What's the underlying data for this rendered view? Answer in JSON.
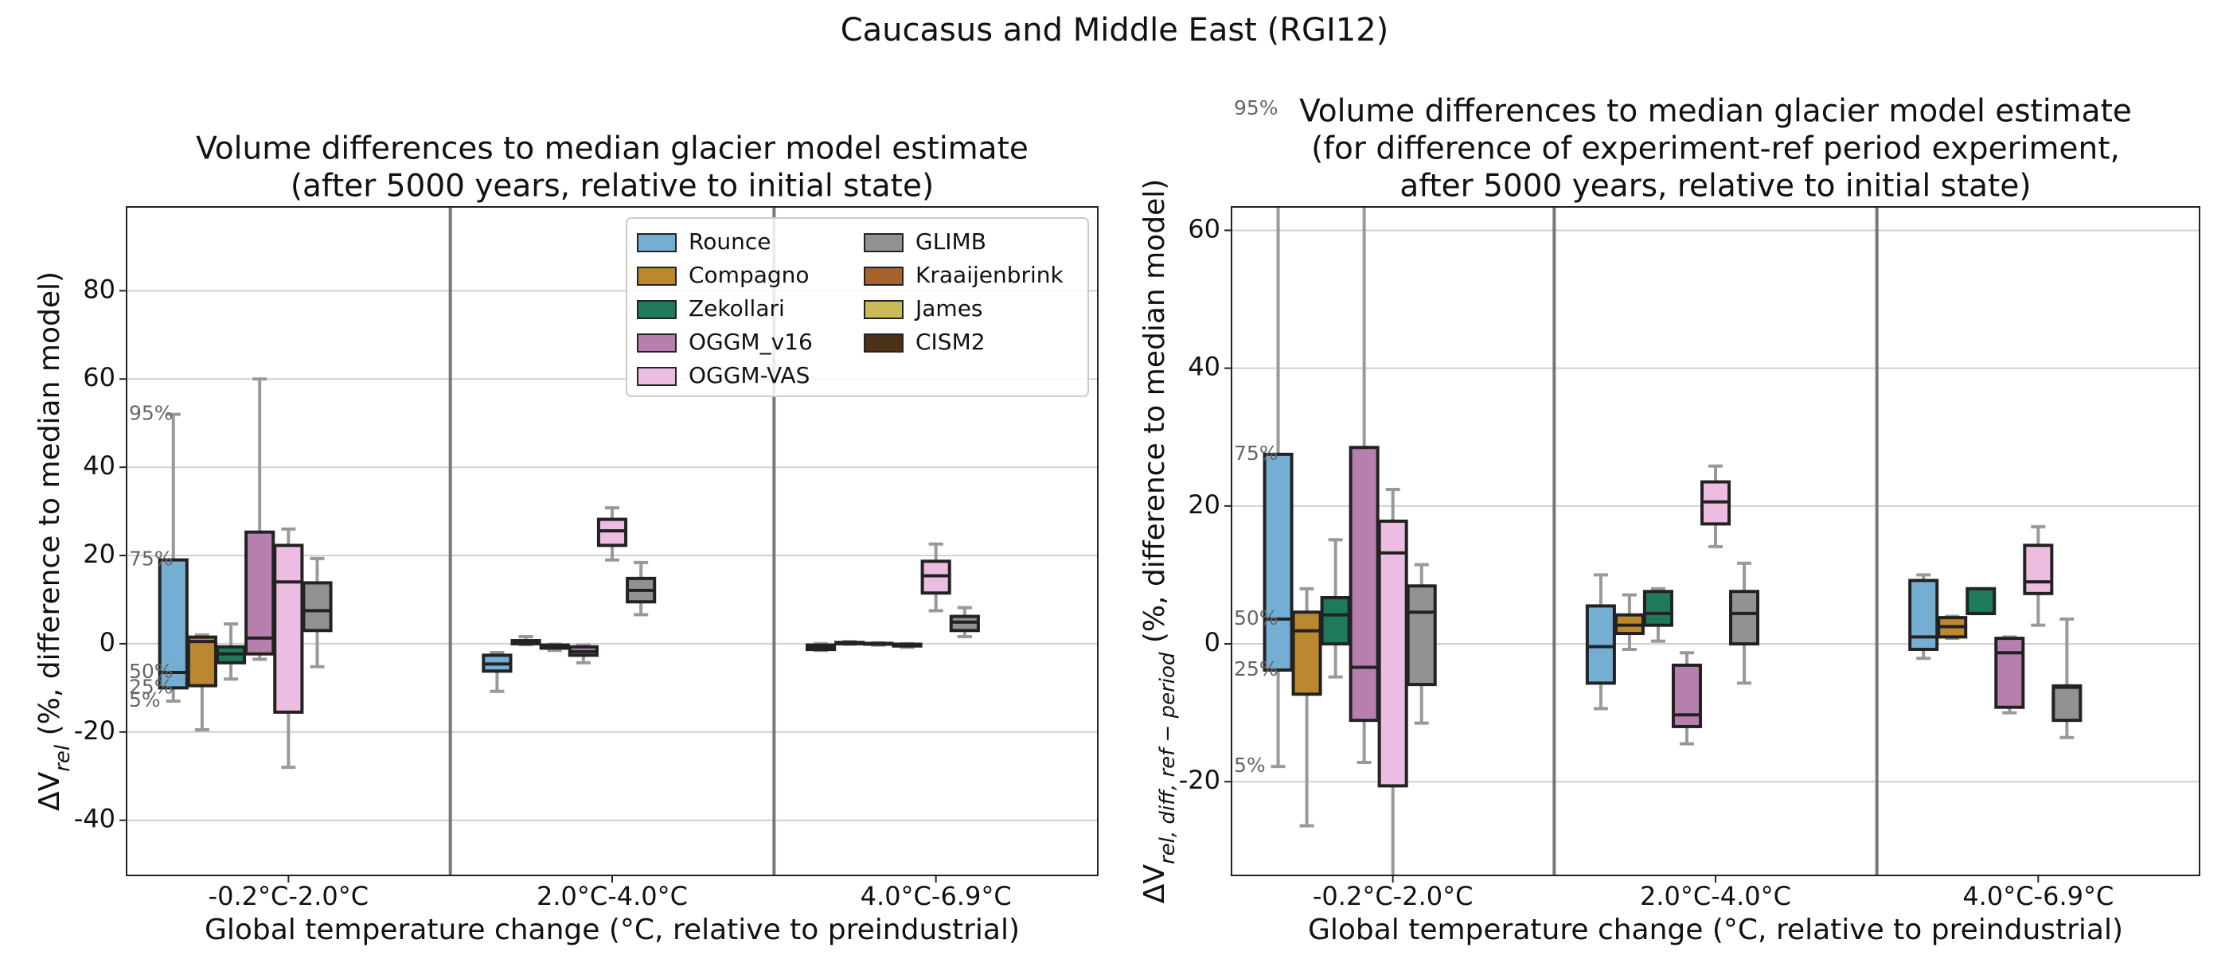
{
  "title": "Caucasus and Middle East (RGI12)",
  "chart_data": [
    {
      "type": "box",
      "title": [
        "Volume differences to median glacier model estimate",
        "(after 5000 years, relative to initial state)"
      ],
      "x_label": "Global temperature change (°C, relative to preindustrial)",
      "y_label": [
        "ΔV",
        "rel",
        " (%, difference to median model)"
      ],
      "categories": [
        "-0.2°C-2.0°C",
        "2.0°C-4.0°C",
        "4.0°C-6.9°C"
      ],
      "ylim": [
        -52.5,
        99
      ],
      "yticks": [
        -40,
        -20,
        0,
        20,
        40,
        60,
        80
      ],
      "grid": true,
      "legend": {
        "loc": "upper right",
        "ncol": 2
      },
      "quantile_labels": [
        "95%",
        "75%",
        "50%",
        "25%",
        "5%"
      ],
      "series": [
        {
          "name": "Rounce",
          "color": "#75aed3",
          "values": [
            [
              -13,
              -10,
              -6.5,
              19,
              52
            ],
            [
              -10.8,
              -6.2,
              -4.6,
              -2.6,
              -2
            ],
            [
              -1.5,
              -1.3,
              -0.8,
              -0.3,
              0
            ]
          ]
        },
        {
          "name": "Compagno",
          "color": "#bb882f",
          "values": [
            [
              -19.5,
              -9.5,
              0.5,
              1.5,
              2
            ],
            [
              -0.2,
              0,
              0.3,
              0.7,
              1.6
            ],
            [
              -0.1,
              0,
              0.2,
              0.3,
              0.5
            ]
          ]
        },
        {
          "name": "Zekollari",
          "color": "#1f7a5c",
          "values": [
            [
              -8,
              -4.3,
              -2.3,
              -0.7,
              4.5
            ],
            [
              -1.5,
              -1,
              -0.6,
              -0.3,
              -0.1
            ],
            [
              -0.3,
              -0.1,
              0,
              0.1,
              0.2
            ]
          ]
        },
        {
          "name": "OGGM_v16",
          "color": "#b77fae",
          "values": [
            [
              -3.5,
              -2.3,
              1.3,
              25.3,
              60
            ],
            [
              -4.3,
              -2.6,
              -1.8,
              -0.7,
              -0.3
            ],
            [
              -0.8,
              -0.5,
              -0.3,
              -0.1,
              0
            ]
          ]
        },
        {
          "name": "OGGM-VAS",
          "color": "#ecbde0",
          "values": [
            [
              -28,
              -15.5,
              14,
              22.3,
              26
            ],
            [
              19,
              22.3,
              25.6,
              28.2,
              30.8
            ],
            [
              7.5,
              11.5,
              15.4,
              18.7,
              22.6
            ]
          ]
        },
        {
          "name": "GLIMB",
          "color": "#929292",
          "values": [
            [
              -5.2,
              3,
              7.5,
              13.8,
              19.3
            ],
            [
              6.6,
              9.5,
              12.1,
              14.8,
              18.4
            ],
            [
              1.6,
              3,
              4.9,
              6.2,
              8.2
            ]
          ]
        },
        {
          "name": "Kraaijenbrink",
          "color": "#a9622c",
          "values": [
            null,
            null,
            null
          ]
        },
        {
          "name": "James",
          "color": "#cbbb57",
          "values": [
            null,
            null,
            null
          ]
        },
        {
          "name": "CISM2",
          "color": "#4b3119",
          "values": [
            null,
            null,
            null
          ]
        }
      ]
    },
    {
      "type": "box",
      "title": [
        "Volume differences to median glacier model estimate",
        "(for difference of experiment-ref period experiment,",
        "after 5000 years, relative to initial state)"
      ],
      "x_label": "Global temperature change (°C, relative to preindustrial)",
      "y_label": [
        "ΔV",
        "rel, diff, ref − period",
        " (%, difference to median model)"
      ],
      "categories": [
        "-0.2°C-2.0°C",
        "2.0°C-4.0°C",
        "4.0°C-6.9°C"
      ],
      "ylim": [
        -33.6,
        63.4
      ],
      "yticks": [
        -20,
        0,
        20,
        40,
        60
      ],
      "grid": true,
      "quantile_labels": [
        "95%",
        "75%",
        "50%",
        "25%",
        "5%"
      ],
      "series": [
        {
          "color": "#75aed3",
          "values": [
            [
              -17.8,
              -3.8,
              3.6,
              27.5,
              77.6
            ],
            [
              -9.4,
              -5.7,
              -0.4,
              5.5,
              10
            ],
            [
              -2.1,
              -0.8,
              1,
              9.2,
              10
            ]
          ]
        },
        {
          "color": "#bb882f",
          "values": [
            [
              -26.4,
              -7.3,
              1.9,
              4.6,
              8
            ],
            [
              -0.8,
              1.5,
              2.7,
              4.2,
              7.1
            ],
            [
              0.8,
              1,
              2.5,
              3.8,
              4
            ]
          ]
        },
        {
          "color": "#1f7a5c",
          "values": [
            [
              -4.8,
              0,
              4.2,
              6.7,
              15.1
            ],
            [
              0.4,
              2.7,
              4.4,
              7.6,
              8
            ],
            [
              4.4,
              4.4,
              4.4,
              8,
              8
            ]
          ]
        },
        {
          "color": "#b77fae",
          "values": [
            [
              -17.2,
              -11.1,
              -3.4,
              28.5,
              75
            ],
            [
              -14.5,
              -12,
              -10.3,
              -3.1,
              -1.3
            ],
            [
              -10,
              -9.2,
              -1.3,
              0.8,
              1
            ]
          ]
        },
        {
          "color": "#ecbde0",
          "values": [
            [
              -36,
              -20.6,
              13.2,
              17.8,
              22.4
            ],
            [
              14.1,
              17.4,
              20.6,
              23.5,
              25.8
            ],
            [
              2.7,
              7.3,
              9,
              14.3,
              17
            ]
          ]
        },
        {
          "color": "#929292",
          "values": [
            [
              -11.5,
              -5.9,
              4.6,
              8.4,
              11.5
            ],
            [
              -5.7,
              0,
              4.4,
              7.6,
              11.7
            ],
            [
              -13.6,
              -11.1,
              -6.3,
              -6.1,
              3.6
            ]
          ]
        },
        {
          "color": "#a9622c",
          "values": [
            null,
            null,
            null
          ]
        },
        {
          "color": "#cbbb57",
          "values": [
            null,
            null,
            null
          ]
        },
        {
          "color": "#4b3119",
          "values": [
            null,
            null,
            null
          ]
        }
      ]
    }
  ]
}
